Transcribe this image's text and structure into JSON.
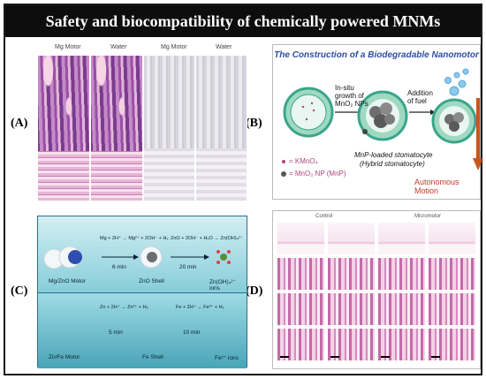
{
  "figure": {
    "title": "Safety and biocompatibility of chemically powered MNMs",
    "panel_labels": [
      "(A)",
      "(B)",
      "(C)",
      "(D)"
    ]
  },
  "panel_a": {
    "captions": [
      "Mg Motor",
      "Water",
      "Mg Motor",
      "Water"
    ]
  },
  "panel_b": {
    "title": "The Construction of a Biodegradable Nanomotor",
    "step1": "In-situ growth of MnO₂ NPs",
    "step2": "Addition of fuel",
    "legend_kmno4": "= KMnO₄",
    "legend_mnp": "= MnO₂ NP (MnP)",
    "mid_caption_1": "MnP-loaded stomatocyte",
    "mid_caption_2": "(Hybrid stomatocyte)",
    "right_caption": "Autonomous Motion",
    "colors": {
      "title": "#2d4fa3",
      "arrow": "#c8551e",
      "motion_text": "#c0392b"
    }
  },
  "panel_c": {
    "row1_eq1": "Mg + 2H⁺ → Mg²⁺ + 2OH⁻ + H₂",
    "row1_time1": "6 min",
    "row1_eq2": "ZnO + 2OH⁻ + H₂O → Zn(OH)₄²⁻",
    "row1_time2": "20 min",
    "row1_labels": [
      "Mg/ZnO Motor",
      "ZnO Shell",
      "Zn(OH)₄²⁻ ions"
    ],
    "row2_eq1": "Zn + 2H⁺ → Zn²⁺ + H₂",
    "row2_time1": "5 min",
    "row2_eq2": "Fe + 2H⁺ → Fe²⁺ + H₂",
    "row2_time2": "10 min",
    "row2_labels": [
      "Zn/Fe Motor",
      "Fe Shell",
      "Fe²⁺ ions"
    ]
  },
  "panel_d": {
    "headers": [
      "Control",
      "Micromotor"
    ]
  }
}
